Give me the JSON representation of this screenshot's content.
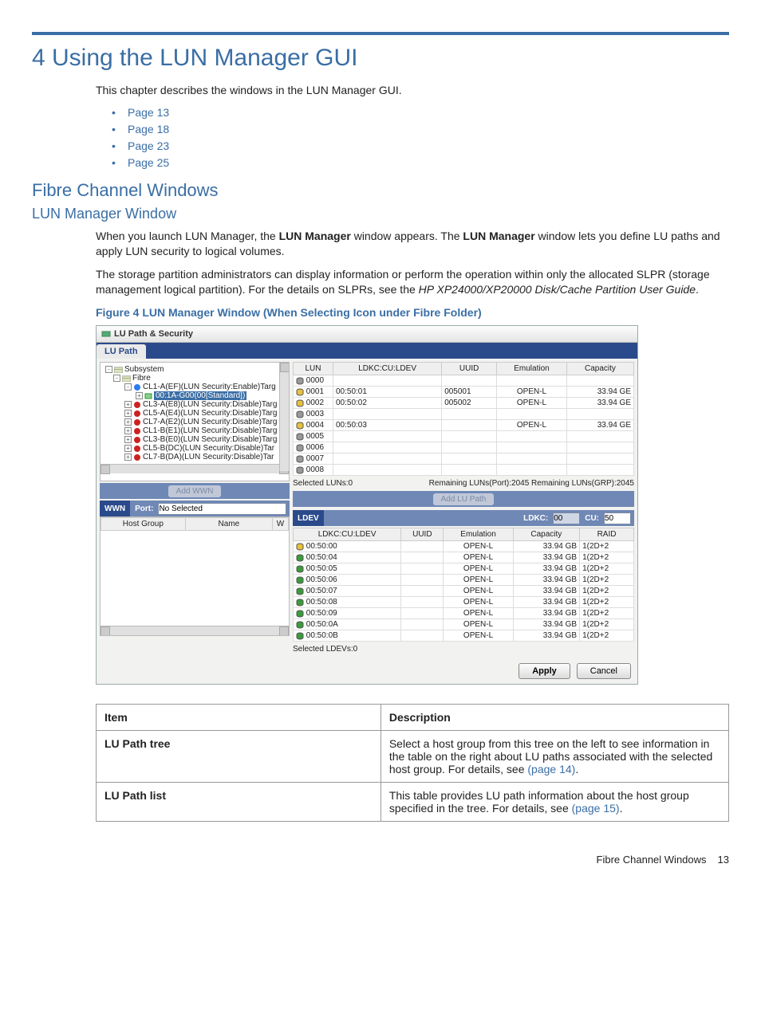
{
  "colors": {
    "accent": "#3a6ea5",
    "headerbar": "#2b4a8b",
    "midbar": "#6f88b5",
    "link": "#3a6ea5",
    "page_bg": "#ffffff",
    "panel_bg": "#f2f2f0",
    "grid_header_bg": "#efeff0",
    "border": "#bbbbbb"
  },
  "heading": "4 Using the LUN Manager GUI",
  "intro": "This chapter describes the windows in the LUN Manager GUI.",
  "toc_links": [
    "Page 13",
    "Page 18",
    "Page 23",
    "Page 25"
  ],
  "h2": "Fibre Channel Windows",
  "h3": "LUN Manager Window",
  "body": {
    "p1_a": "When you launch LUN Manager, the ",
    "p1_b": " window appears. The ",
    "p1_c": " window lets you define LU paths and apply LUN security to logical volumes.",
    "lun_manager": "LUN Manager",
    "p2_a": "The storage partition administrators can display information or perform the operation within only the allocated SLPR (storage management logical partition). For the details on SLPRs, see the ",
    "p2_guide": "HP XP24000/XP20000 Disk/Cache Partition User Guide",
    "p2_end": "."
  },
  "figcap": "Figure 4 LUN Manager Window (When Selecting Icon under Fibre Folder)",
  "shot": {
    "window_title": "LU Path & Security",
    "tab": "LU Path",
    "tree": {
      "root": "Subsystem",
      "fibre": "Fibre",
      "items": [
        "CL1-A(EF)(LUN Security:Enable)Targ",
        "00:1A-G00(00[Standard])",
        "CL3-A(E8)(LUN Security:Disable)Targ",
        "CL5-A(E4)(LUN Security:Disable)Targ",
        "CL7-A(E2)(LUN Security:Disable)Targ",
        "CL1-B(E1)(LUN Security:Disable)Targ",
        "CL3-B(E0)(LUN Security:Disable)Targ",
        "CL5-B(DC)(LUN Security:Disable)Tar",
        "CL7-B(DA)(LUN Security:Disable)Tar"
      ]
    },
    "lun_table": {
      "cols": [
        "LUN",
        "LDKC:CU:LDEV",
        "UUID",
        "Emulation",
        "Capacity"
      ],
      "rows": [
        [
          "0000",
          "",
          "",
          "",
          ""
        ],
        [
          "0001",
          "00:50:01",
          "005001",
          "OPEN-L",
          "33.94 GE"
        ],
        [
          "0002",
          "00:50:02",
          "005002",
          "OPEN-L",
          "33.94 GE"
        ],
        [
          "0003",
          "",
          "",
          "",
          ""
        ],
        [
          "0004",
          "00:50:03",
          "",
          "OPEN-L",
          "33.94 GE"
        ],
        [
          "0005",
          "",
          "",
          "",
          ""
        ],
        [
          "0006",
          "",
          "",
          "",
          ""
        ],
        [
          "0007",
          "",
          "",
          "",
          ""
        ],
        [
          "0008",
          "",
          "",
          "",
          ""
        ]
      ],
      "status_left": "Selected LUNs:0",
      "status_right": "Remaining LUNs(Port):2045 Remaining LUNs(GRP):2045"
    },
    "add_wwn_btn": "Add WWN",
    "add_lupath_btn": "Add LU Path",
    "wwn_bar": {
      "label": "WWN",
      "port_label": "Port:",
      "port_value": "No Selected"
    },
    "ldev_bar": {
      "label": "LDEV",
      "ldkc_label": "LDKC:",
      "ldkc_value": "00",
      "cu_label": "CU:",
      "cu_value": "50"
    },
    "wwn_cols": [
      "Host Group",
      "Name",
      "W"
    ],
    "ldev_table": {
      "cols": [
        "LDKC:CU:LDEV",
        "UUID",
        "Emulation",
        "Capacity",
        "RAID"
      ],
      "rows": [
        [
          "00:50:00",
          "",
          "OPEN-L",
          "33.94 GB",
          "1(2D+2"
        ],
        [
          "00:50:04",
          "",
          "OPEN-L",
          "33.94 GB",
          "1(2D+2"
        ],
        [
          "00:50:05",
          "",
          "OPEN-L",
          "33.94 GB",
          "1(2D+2"
        ],
        [
          "00:50:06",
          "",
          "OPEN-L",
          "33.94 GB",
          "1(2D+2"
        ],
        [
          "00:50:07",
          "",
          "OPEN-L",
          "33.94 GB",
          "1(2D+2"
        ],
        [
          "00:50:08",
          "",
          "OPEN-L",
          "33.94 GB",
          "1(2D+2"
        ],
        [
          "00:50:09",
          "",
          "OPEN-L",
          "33.94 GB",
          "1(2D+2"
        ],
        [
          "00:50:0A",
          "",
          "OPEN-L",
          "33.94 GB",
          "1(2D+2"
        ],
        [
          "00:50:0B",
          "",
          "OPEN-L",
          "33.94 GB",
          "1(2D+2"
        ]
      ],
      "status": "Selected LDEVs:0"
    },
    "apply": "Apply",
    "cancel": "Cancel"
  },
  "desc_table": {
    "head_item": "Item",
    "head_desc": "Description",
    "rows": [
      {
        "item": "LU Path tree",
        "desc_a": "Select a host group from this tree on the left to see information in the table on the right about LU paths associated with the selected host group. For details, see ",
        "link": "(page 14)",
        "desc_b": "."
      },
      {
        "item": "LU Path list",
        "desc_a": "This table provides LU path information about the host group specified in the tree. For details, see ",
        "link": "(page 15)",
        "desc_b": "."
      }
    ]
  },
  "footer": {
    "section": "Fibre Channel Windows",
    "page": "13"
  }
}
